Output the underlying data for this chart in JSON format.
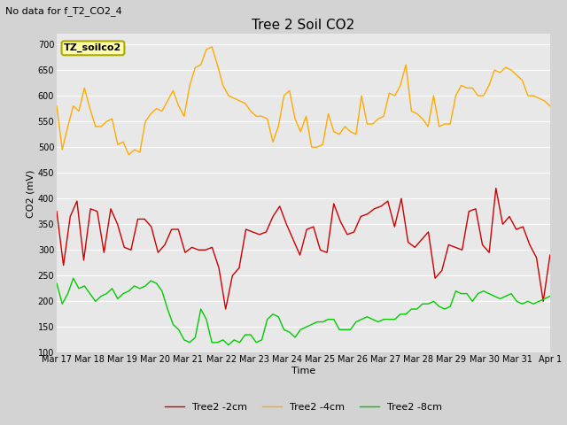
{
  "title": "Tree 2 Soil CO2",
  "subtitle": "No data for f_T2_CO2_4",
  "xlabel": "Time",
  "ylabel": "CO2 (mV)",
  "ylim": [
    100,
    720
  ],
  "yticks": [
    100,
    150,
    200,
    250,
    300,
    350,
    400,
    450,
    500,
    550,
    600,
    650,
    700
  ],
  "fig_bg_color": "#d3d3d3",
  "plot_bg_color": "#e8e8e8",
  "legend_entries": [
    "Tree2 -2cm",
    "Tree2 -4cm",
    "Tree2 -8cm"
  ],
  "colors": {
    "red": "#cc0000",
    "orange": "#ffaa00",
    "green": "#00cc00"
  },
  "tz_label": "TZ_soilco2",
  "tz_box_color": "#ffffaa",
  "tz_border_color": "#aaaa00",
  "x_tick_labels": [
    "Mar 17",
    "Mar 18",
    "Mar 19",
    "Mar 20",
    "Mar 21",
    "Mar 22",
    "Mar 23",
    "Mar 24",
    "Mar 25",
    "Mar 26",
    "Mar 27",
    "Mar 28",
    "Mar 29",
    "Mar 30",
    "Mar 31",
    "Apr 1"
  ],
  "red_data": [
    375,
    270,
    365,
    395,
    280,
    380,
    375,
    295,
    380,
    350,
    305,
    300,
    360,
    360,
    345,
    295,
    310,
    340,
    340,
    295,
    305,
    300,
    300,
    305,
    265,
    185,
    250,
    265,
    340,
    335,
    330,
    335,
    365,
    385,
    350,
    320,
    290,
    340,
    345,
    300,
    295,
    390,
    355,
    330,
    335,
    365,
    370,
    380,
    385,
    395,
    345,
    400,
    315,
    305,
    320,
    335,
    245,
    260,
    310,
    305,
    300,
    375,
    380,
    310,
    295,
    420,
    350,
    365,
    340,
    345,
    310,
    285,
    200,
    290
  ],
  "orange_data": [
    580,
    495,
    540,
    580,
    570,
    615,
    575,
    540,
    540,
    550,
    555,
    505,
    510,
    485,
    495,
    490,
    550,
    565,
    575,
    570,
    590,
    610,
    580,
    560,
    620,
    655,
    660,
    690,
    695,
    660,
    620,
    600,
    595,
    590,
    585,
    570,
    560,
    560,
    555,
    510,
    540,
    600,
    610,
    555,
    530,
    560,
    500,
    500,
    505,
    565,
    530,
    525,
    540,
    530,
    525,
    600,
    545,
    545,
    555,
    560,
    605,
    600,
    620,
    660,
    570,
    565,
    555,
    540,
    600,
    540,
    545,
    545,
    600,
    620,
    615,
    615,
    600,
    600,
    620,
    650,
    645,
    655,
    650,
    640,
    630,
    600,
    600,
    595,
    590,
    580
  ],
  "green_data": [
    235,
    195,
    215,
    245,
    225,
    230,
    215,
    200,
    210,
    215,
    225,
    205,
    215,
    220,
    230,
    225,
    230,
    240,
    235,
    220,
    185,
    155,
    145,
    125,
    120,
    130,
    185,
    165,
    120,
    120,
    125,
    115,
    125,
    120,
    135,
    135,
    120,
    125,
    165,
    175,
    170,
    145,
    140,
    130,
    145,
    150,
    155,
    160,
    160,
    165,
    165,
    145,
    145,
    145,
    160,
    165,
    170,
    165,
    160,
    165,
    165,
    165,
    175,
    175,
    185,
    185,
    195,
    195,
    200,
    190,
    185,
    190,
    220,
    215,
    215,
    200,
    215,
    220,
    215,
    210,
    205,
    210,
    215,
    200,
    195,
    200,
    195,
    200,
    205,
    210
  ],
  "title_fontsize": 11,
  "subtitle_fontsize": 8,
  "axis_label_fontsize": 8,
  "tick_fontsize": 7,
  "legend_fontsize": 8,
  "tz_fontsize": 8,
  "linewidth": 1.0
}
